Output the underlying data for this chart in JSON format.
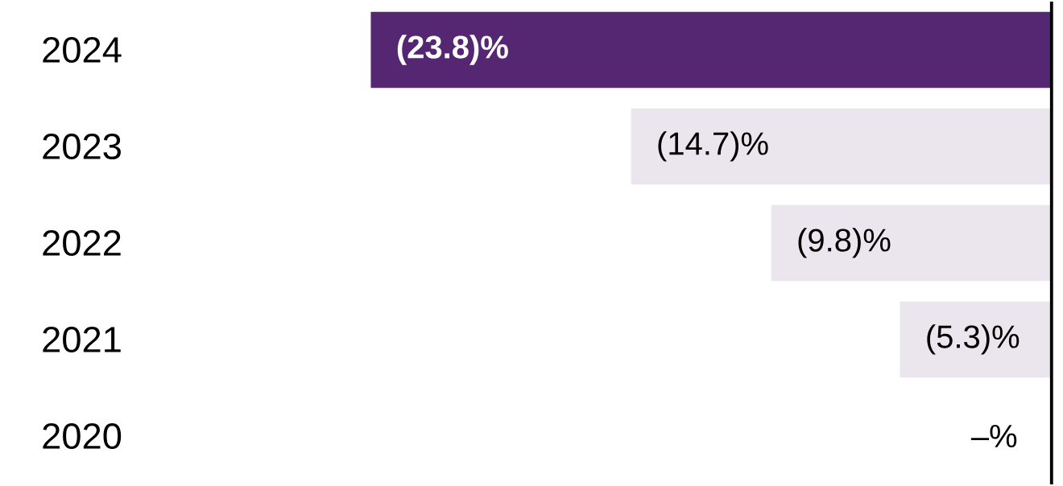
{
  "chart_data": {
    "type": "bar",
    "orientation": "horizontal",
    "categories": [
      "2024",
      "2023",
      "2022",
      "2021",
      "2020"
    ],
    "values": [
      -23.8,
      -14.7,
      -9.8,
      -5.3,
      0
    ],
    "colors": [
      "#552772",
      "#ebe6ee",
      "#ebe6ee",
      "#ebe6ee",
      "#ebe6ee"
    ],
    "value_labels": [
      "(23.8)%",
      "(14.7)%",
      "(9.8)%",
      "(5.3)%",
      "–%"
    ]
  }
}
